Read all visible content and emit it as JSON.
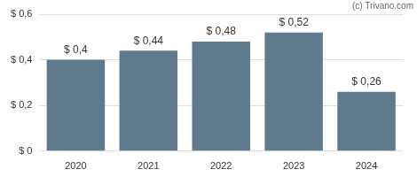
{
  "chart_data": {
    "type": "bar",
    "annotations": [
      "(c) Trivano.com"
    ],
    "categories": [
      "2020",
      "2021",
      "2022",
      "2023",
      "2024"
    ],
    "values": [
      0.4,
      0.44,
      0.48,
      0.52,
      0.26
    ],
    "value_labels": [
      "$ 0,4",
      "$ 0,44",
      "$ 0,48",
      "$ 0,52",
      "$ 0,26"
    ],
    "color": "#5f7a8c",
    "ylim": [
      0,
      0.6
    ],
    "yticks": [
      {
        "value": 0,
        "label": "$ 0"
      },
      {
        "value": 0.2,
        "label": "$ 0,2"
      },
      {
        "value": 0.4,
        "label": "$ 0,4"
      },
      {
        "value": 0.6,
        "label": "$ 0,6"
      }
    ],
    "grid": true,
    "data_labels": true
  }
}
